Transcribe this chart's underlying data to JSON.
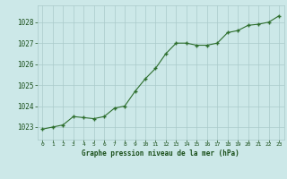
{
  "x": [
    0,
    1,
    2,
    3,
    4,
    5,
    6,
    7,
    8,
    9,
    10,
    11,
    12,
    13,
    14,
    15,
    16,
    17,
    18,
    19,
    20,
    21,
    22,
    23
  ],
  "y": [
    1022.9,
    1023.0,
    1023.1,
    1023.5,
    1023.45,
    1023.4,
    1023.5,
    1023.9,
    1024.0,
    1024.7,
    1025.3,
    1025.8,
    1026.5,
    1027.0,
    1027.0,
    1026.9,
    1026.9,
    1027.0,
    1027.5,
    1027.6,
    1027.85,
    1027.9,
    1028.0,
    1028.3
  ],
  "line_color": "#2d6e2d",
  "marker_color": "#2d6e2d",
  "bg_color": "#cce8e8",
  "grid_color": "#aacaca",
  "title": "Graphe pression niveau de la mer (hPa)",
  "title_color": "#1a4f1a",
  "xlabel_ticks": [
    "0",
    "1",
    "2",
    "3",
    "4",
    "5",
    "6",
    "7",
    "8",
    "9",
    "10",
    "11",
    "12",
    "13",
    "14",
    "15",
    "16",
    "17",
    "18",
    "19",
    "20",
    "21",
    "22",
    "23"
  ],
  "yticks": [
    1023,
    1024,
    1025,
    1026,
    1027,
    1028
  ],
  "ylim": [
    1022.4,
    1028.8
  ],
  "xlim": [
    -0.5,
    23.5
  ]
}
